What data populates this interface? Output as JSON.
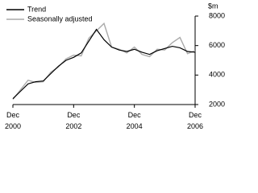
{
  "chart_data": {
    "type": "line",
    "y_unit": "$m",
    "x": [
      2000.917,
      2001.167,
      2001.417,
      2001.667,
      2001.917,
      2002.167,
      2002.417,
      2002.667,
      2002.917,
      2003.167,
      2003.417,
      2003.667,
      2003.917,
      2004.167,
      2004.417,
      2004.667,
      2004.917,
      2005.167,
      2005.417,
      2005.667,
      2005.917,
      2006.167,
      2006.417,
      2006.667,
      2006.917
    ],
    "series": [
      {
        "name": "Trend",
        "color": "#000000",
        "values": [
          2400,
          2900,
          3400,
          3550,
          3600,
          4100,
          4600,
          5000,
          5200,
          5500,
          6300,
          7100,
          6400,
          5900,
          5700,
          5600,
          5750,
          5550,
          5400,
          5650,
          5800,
          5950,
          5850,
          5600,
          5550
        ]
      },
      {
        "name": "Seasonally adjusted",
        "color": "#aaaaaa",
        "values": [
          2350,
          3000,
          3650,
          3500,
          3550,
          4200,
          4550,
          5100,
          5350,
          5300,
          6500,
          7000,
          7500,
          5900,
          5750,
          5500,
          5900,
          5400,
          5250,
          5750,
          5700,
          6200,
          6550,
          5450,
          5650
        ]
      }
    ],
    "xlim": [
      2000.917,
      2006.917
    ],
    "xticks": [
      {
        "value": 2000.917,
        "label": "Dec 2000"
      },
      {
        "value": 2002.917,
        "label": "Dec 2002"
      },
      {
        "value": 2004.917,
        "label": "Dec 2004"
      },
      {
        "value": 2006.917,
        "label": "Dec 2006"
      }
    ],
    "ylim": [
      2000,
      8000
    ],
    "yticks": [
      2000,
      4000,
      6000,
      8000
    ],
    "grid": false
  }
}
